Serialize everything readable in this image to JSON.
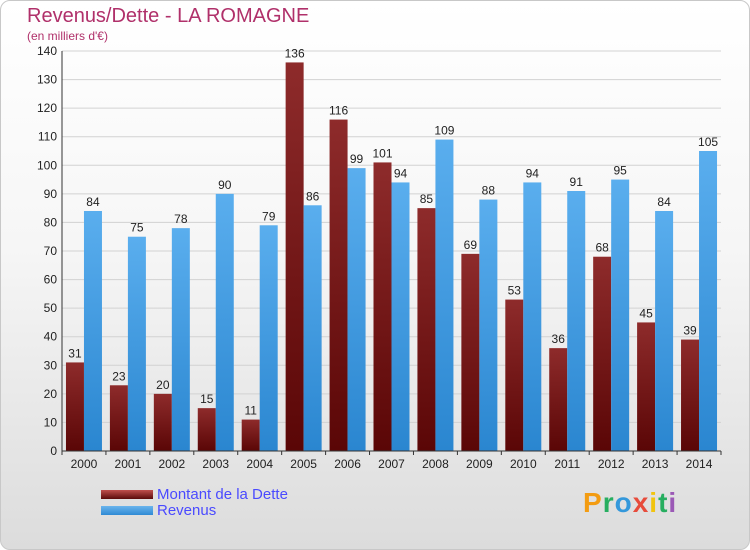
{
  "header": {
    "title": "Revenus/Dette - LA ROMAGNE",
    "subtitle": "(en milliers d'€)"
  },
  "chart_data": {
    "type": "bar",
    "title": "Revenus/Dette - LA ROMAGNE",
    "subtitle": "(en milliers d'€)",
    "xlabel": "",
    "ylabel": "",
    "ylim": [
      0,
      140
    ],
    "yticks": [
      0,
      10,
      20,
      30,
      40,
      50,
      60,
      70,
      80,
      90,
      100,
      110,
      120,
      130,
      140
    ],
    "grid": true,
    "legend_position": "bottom-left",
    "categories": [
      "2000",
      "2001",
      "2002",
      "2003",
      "2004",
      "2005",
      "2006",
      "2007",
      "2008",
      "2009",
      "2010",
      "2011",
      "2012",
      "2013",
      "2014"
    ],
    "series": [
      {
        "name": "Montant de la Dette",
        "color": "#8b1a1a",
        "values": [
          31,
          23,
          20,
          15,
          11,
          136,
          116,
          101,
          85,
          69,
          53,
          36,
          68,
          45,
          39
        ]
      },
      {
        "name": "Revenus",
        "color": "#4aa3e6",
        "values": [
          84,
          75,
          78,
          90,
          79,
          86,
          99,
          94,
          109,
          88,
          94,
          91,
          95,
          84,
          105
        ]
      }
    ]
  },
  "legend": {
    "items": [
      {
        "label": "Montant de la Dette"
      },
      {
        "label": "Revenus"
      }
    ]
  },
  "brand": {
    "letters": [
      "P",
      "r",
      "o",
      "x",
      "i",
      "t",
      "i"
    ],
    "colors": [
      "#f39c12",
      "#27ae60",
      "#3498db",
      "#e74c3c",
      "#f1c40f",
      "#27ae60",
      "#9b59b6"
    ]
  }
}
